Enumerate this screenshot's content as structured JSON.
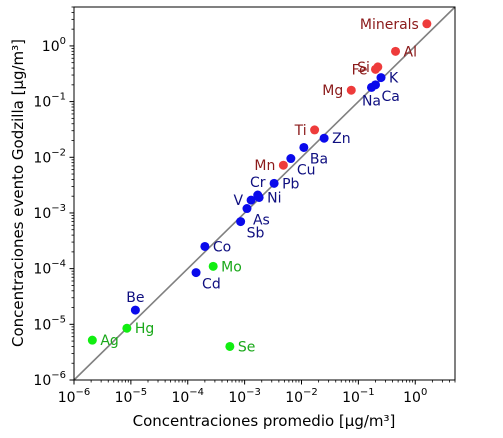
{
  "chart_data": {
    "type": "scatter",
    "title": "",
    "xlabel": "Concentraciones promedio [μg/m³]",
    "ylabel": "Concentraciones evento Godzilla [μg/m³]",
    "xscale": "log",
    "yscale": "log",
    "xlim": [
      1e-06,
      5
    ],
    "ylim": [
      1e-06,
      5
    ],
    "x_ticks": [
      {
        "base": "10",
        "exp": "−6"
      },
      {
        "base": "10",
        "exp": "−5"
      },
      {
        "base": "10",
        "exp": "−4"
      },
      {
        "base": "10",
        "exp": "−3"
      },
      {
        "base": "10",
        "exp": "−2"
      },
      {
        "base": "10",
        "exp": "−1"
      },
      {
        "base": "10",
        "exp": "0"
      }
    ],
    "y_ticks": [
      {
        "base": "10",
        "exp": "−6"
      },
      {
        "base": "10",
        "exp": "−5"
      },
      {
        "base": "10",
        "exp": "−4"
      },
      {
        "base": "10",
        "exp": "−3"
      },
      {
        "base": "10",
        "exp": "−2"
      },
      {
        "base": "10",
        "exp": "−1"
      },
      {
        "base": "10",
        "exp": "0"
      }
    ],
    "grid": false,
    "reference_line": "y = x",
    "reference_color": "#808080",
    "colors": {
      "red_marker": "#ee3b3b",
      "red_label": "#8b1a1a",
      "blue_marker": "#0a0aeb",
      "blue_label": "#0f0f80",
      "green_marker": "#11ee11",
      "green_label": "#1aa81a"
    },
    "points": [
      {
        "label": "Minerals",
        "x": 1.6,
        "y": 2.5,
        "group": "red",
        "label_pos": "left"
      },
      {
        "label": "Al",
        "x": 0.45,
        "y": 0.8,
        "group": "red",
        "label_pos": "right"
      },
      {
        "label": "Si",
        "x": 0.22,
        "y": 0.42,
        "group": "red",
        "label_pos": "left"
      },
      {
        "label": "Fe",
        "x": 0.2,
        "y": 0.38,
        "group": "red",
        "label_pos": "left"
      },
      {
        "label": "Mg",
        "x": 0.075,
        "y": 0.16,
        "group": "red",
        "label_pos": "left"
      },
      {
        "label": "Ti",
        "x": 0.017,
        "y": 0.031,
        "group": "red",
        "label_pos": "left"
      },
      {
        "label": "Mn",
        "x": 0.0048,
        "y": 0.0072,
        "group": "red",
        "label_pos": "left"
      },
      {
        "label": "K",
        "x": 0.25,
        "y": 0.27,
        "group": "blue",
        "label_pos": "right"
      },
      {
        "label": "Ca",
        "x": 0.2,
        "y": 0.2,
        "group": "blue",
        "label_pos": "below-right"
      },
      {
        "label": "Na",
        "x": 0.17,
        "y": 0.18,
        "group": "blue",
        "label_pos": "below"
      },
      {
        "label": "Zn",
        "x": 0.025,
        "y": 0.022,
        "group": "blue",
        "label_pos": "right"
      },
      {
        "label": "Ba",
        "x": 0.011,
        "y": 0.015,
        "group": "blue",
        "label_pos": "below-right"
      },
      {
        "label": "Cu",
        "x": 0.0065,
        "y": 0.0095,
        "group": "blue",
        "label_pos": "below-right"
      },
      {
        "label": "Pb",
        "x": 0.0033,
        "y": 0.0034,
        "group": "blue",
        "label_pos": "right"
      },
      {
        "label": "Cr",
        "x": 0.0017,
        "y": 0.0021,
        "group": "blue",
        "label_pos": "above"
      },
      {
        "label": "V",
        "x": 0.0013,
        "y": 0.0017,
        "group": "blue",
        "label_pos": "left"
      },
      {
        "label": "Ni",
        "x": 0.0018,
        "y": 0.0019,
        "group": "blue",
        "label_pos": "right"
      },
      {
        "label": "As",
        "x": 0.0011,
        "y": 0.0012,
        "group": "blue",
        "label_pos": "below-right"
      },
      {
        "label": "Sb",
        "x": 0.00085,
        "y": 0.0007,
        "group": "blue",
        "label_pos": "below-right"
      },
      {
        "label": "Co",
        "x": 0.0002,
        "y": 0.00025,
        "group": "blue",
        "label_pos": "right"
      },
      {
        "label": "Cd",
        "x": 0.00014,
        "y": 8.5e-05,
        "group": "blue",
        "label_pos": "below-right"
      },
      {
        "label": "Be",
        "x": 1.2e-05,
        "y": 1.8e-05,
        "group": "blue",
        "label_pos": "above"
      },
      {
        "label": "Mo",
        "x": 0.00028,
        "y": 0.00011,
        "group": "green",
        "label_pos": "right"
      },
      {
        "label": "Hg",
        "x": 8.5e-06,
        "y": 8.5e-06,
        "group": "green",
        "label_pos": "right"
      },
      {
        "label": "Ag",
        "x": 2.1e-06,
        "y": 5.2e-06,
        "group": "green",
        "label_pos": "right"
      },
      {
        "label": "Se",
        "x": 0.00055,
        "y": 4e-06,
        "group": "green",
        "label_pos": "right"
      }
    ]
  }
}
